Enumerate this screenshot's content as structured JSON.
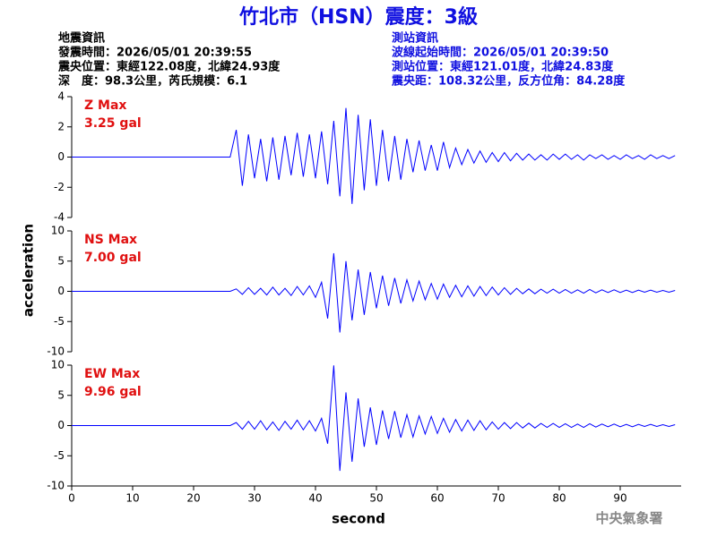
{
  "header": {
    "title": "竹北市（HSN）震度：3級",
    "info_left": [
      "地震資訊",
      "發震時間：2026/05/01 20:39:55",
      "震央位置：東經122.08度，北緯24.93度",
      "深　度：98.3公里，芮氏規模：6.1"
    ],
    "info_right": [
      "測站資訊",
      "波線起始時間：2026/05/01 20:39:50",
      "測站位置：東經121.01度，北緯24.83度",
      "震央距：108.32公里，反方位角：84.28度"
    ],
    "y_label": "acceleration",
    "x_label": "second",
    "footer": "中央氣象署"
  },
  "chart_data": [
    {
      "type": "line",
      "label": "Z Max",
      "max_label": "3.25 gal",
      "xlim": [
        0,
        100
      ],
      "ylim": [
        -4,
        4
      ],
      "yticks": [
        -4,
        -2,
        0,
        2,
        4
      ],
      "x": [
        0,
        26,
        27,
        28,
        29,
        30,
        31,
        32,
        33,
        34,
        35,
        36,
        37,
        38,
        39,
        40,
        41,
        42,
        43,
        44,
        45,
        46,
        47,
        48,
        49,
        50,
        51,
        52,
        53,
        54,
        55,
        56,
        57,
        58,
        59,
        60,
        61,
        62,
        63,
        64,
        65,
        66,
        67,
        68,
        69,
        70,
        71,
        72,
        73,
        74,
        75,
        76,
        77,
        78,
        79,
        80,
        81,
        82,
        83,
        84,
        85,
        86,
        87,
        88,
        89,
        90,
        91,
        92,
        93,
        94,
        95,
        96,
        97,
        98,
        99
      ],
      "series": [
        {
          "color": "#0000ff",
          "values": [
            0,
            0,
            1.8,
            -1.9,
            1.5,
            -1.4,
            1.2,
            -1.6,
            1.3,
            -1.5,
            1.4,
            -1.2,
            1.6,
            -1.3,
            1.5,
            -1.4,
            1.7,
            -1.8,
            2.4,
            -2.6,
            3.25,
            -3.1,
            2.8,
            -2.2,
            2.5,
            -1.9,
            1.8,
            -1.6,
            1.4,
            -1.5,
            1.2,
            -1.0,
            1.1,
            -0.9,
            0.8,
            -0.9,
            1.0,
            -0.7,
            0.6,
            -0.5,
            0.5,
            -0.4,
            0.4,
            -0.35,
            0.3,
            -0.3,
            0.3,
            -0.25,
            0.25,
            -0.2,
            0.2,
            -0.2,
            0.15,
            -0.2,
            0.2,
            -0.15,
            0.2,
            -0.15,
            0.15,
            -0.2,
            0.15,
            -0.1,
            0.15,
            -0.15,
            0.1,
            -0.15,
            0.15,
            -0.1,
            0.1,
            -0.15,
            0.15,
            -0.1,
            0.1,
            -0.1,
            0.1
          ]
        }
      ]
    },
    {
      "type": "line",
      "label": "NS Max",
      "max_label": "7.00 gal",
      "xlim": [
        0,
        100
      ],
      "ylim": [
        -10,
        10
      ],
      "yticks": [
        -10,
        -5,
        0,
        5,
        10
      ],
      "x": [
        0,
        26,
        27,
        28,
        29,
        30,
        31,
        32,
        33,
        34,
        35,
        36,
        37,
        38,
        39,
        40,
        41,
        42,
        43,
        44,
        45,
        46,
        47,
        48,
        49,
        50,
        51,
        52,
        53,
        54,
        55,
        56,
        57,
        58,
        59,
        60,
        61,
        62,
        63,
        64,
        65,
        66,
        67,
        68,
        69,
        70,
        71,
        72,
        73,
        74,
        75,
        76,
        77,
        78,
        79,
        80,
        81,
        82,
        83,
        84,
        85,
        86,
        87,
        88,
        89,
        90,
        91,
        92,
        93,
        94,
        95,
        96,
        97,
        98,
        99
      ],
      "series": [
        {
          "color": "#0000ff",
          "values": [
            0,
            0,
            0.4,
            -0.5,
            0.6,
            -0.5,
            0.5,
            -0.6,
            0.7,
            -0.6,
            0.5,
            -0.7,
            0.8,
            -0.6,
            0.9,
            -1.0,
            1.5,
            -4.5,
            6.3,
            -6.8,
            5.0,
            -4.8,
            3.6,
            -3.9,
            3.2,
            -2.8,
            2.6,
            -2.4,
            2.2,
            -2.0,
            1.9,
            -1.6,
            1.7,
            -1.4,
            1.3,
            -1.3,
            1.2,
            -1.0,
            1.0,
            -0.9,
            0.9,
            -0.8,
            0.8,
            -0.7,
            0.7,
            -0.6,
            0.6,
            -0.5,
            0.5,
            -0.4,
            0.4,
            -0.4,
            0.35,
            -0.3,
            0.35,
            -0.3,
            0.3,
            -0.3,
            0.25,
            -0.3,
            0.3,
            -0.25,
            0.25,
            -0.2,
            0.25,
            -0.2,
            0.2,
            -0.2,
            0.2,
            -0.15,
            0.2,
            -0.15,
            0.15,
            -0.15,
            0.15
          ]
        }
      ]
    },
    {
      "type": "line",
      "label": "EW Max",
      "max_label": "9.96 gal",
      "xlim": [
        0,
        100
      ],
      "ylim": [
        -10,
        10
      ],
      "yticks": [
        -10,
        -5,
        0,
        5,
        10
      ],
      "xticks": [
        0,
        10,
        20,
        30,
        40,
        50,
        60,
        70,
        80,
        90
      ],
      "x": [
        0,
        26,
        27,
        28,
        29,
        30,
        31,
        32,
        33,
        34,
        35,
        36,
        37,
        38,
        39,
        40,
        41,
        42,
        43,
        44,
        45,
        46,
        47,
        48,
        49,
        50,
        51,
        52,
        53,
        54,
        55,
        56,
        57,
        58,
        59,
        60,
        61,
        62,
        63,
        64,
        65,
        66,
        67,
        68,
        69,
        70,
        71,
        72,
        73,
        74,
        75,
        76,
        77,
        78,
        79,
        80,
        81,
        82,
        83,
        84,
        85,
        86,
        87,
        88,
        89,
        90,
        91,
        92,
        93,
        94,
        95,
        96,
        97,
        98,
        99
      ],
      "series": [
        {
          "color": "#0000ff",
          "values": [
            0,
            0,
            0.5,
            -0.6,
            0.7,
            -0.6,
            0.8,
            -0.7,
            0.6,
            -0.8,
            0.7,
            -0.6,
            0.9,
            -0.7,
            0.8,
            -0.9,
            1.2,
            -3.0,
            9.96,
            -7.5,
            5.5,
            -6.0,
            4.5,
            -3.5,
            3.0,
            -3.2,
            2.5,
            -2.2,
            2.4,
            -2.0,
            1.8,
            -1.9,
            1.6,
            -1.4,
            1.5,
            -1.3,
            1.2,
            -1.1,
            1.0,
            -0.9,
            0.9,
            -0.8,
            0.8,
            -0.7,
            0.6,
            -0.6,
            0.5,
            -0.5,
            0.5,
            -0.4,
            0.4,
            -0.4,
            0.35,
            -0.3,
            0.35,
            -0.3,
            0.3,
            -0.3,
            0.25,
            -0.3,
            0.3,
            -0.25,
            0.25,
            -0.2,
            0.25,
            -0.2,
            0.2,
            -0.2,
            0.2,
            -0.15,
            0.2,
            -0.15,
            0.15,
            -0.15,
            0.15
          ]
        }
      ]
    }
  ]
}
